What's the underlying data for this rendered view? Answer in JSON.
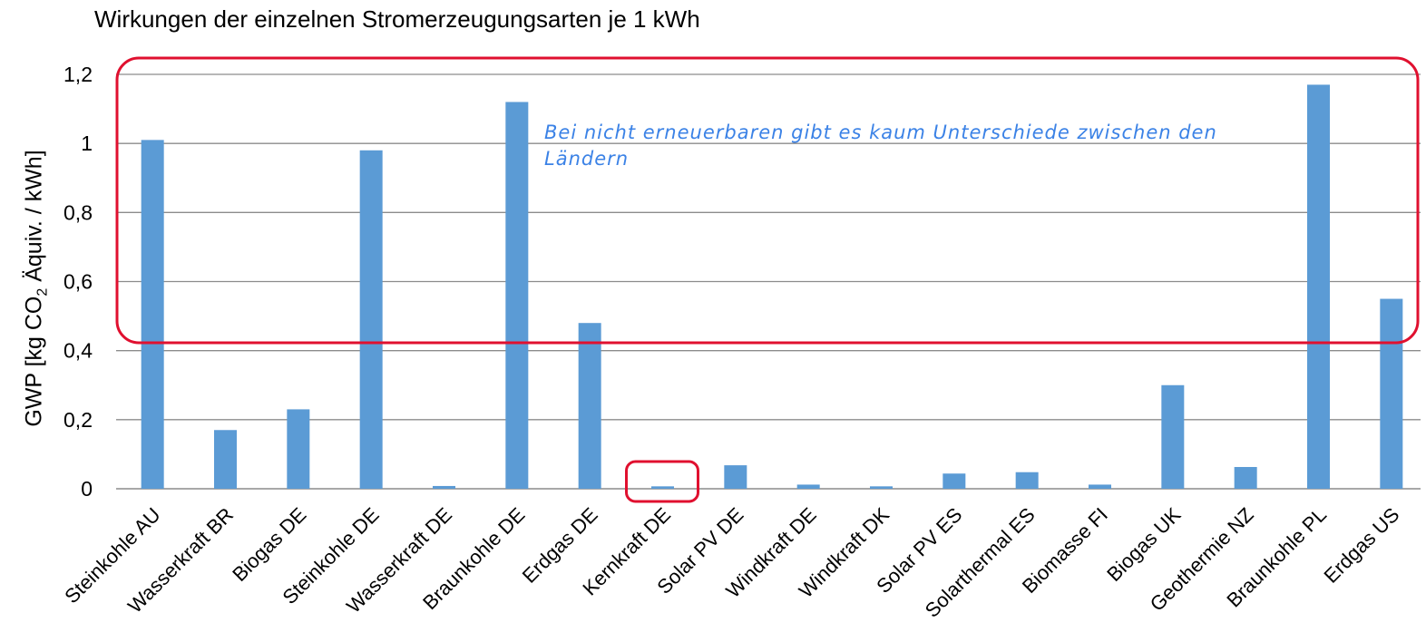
{
  "chart_data": {
    "type": "bar",
    "title": "Wirkungen der einzelnen Stromerzeugungsarten je 1 kWh",
    "ylabel_parts": {
      "before": "GWP [kg CO",
      "sub": "2",
      "after": " Äquiv. / kWh]"
    },
    "xlabel": "",
    "ylim": [
      0,
      1.2
    ],
    "yticks": [
      0,
      0.2,
      0.4,
      0.6,
      0.8,
      1,
      1.2
    ],
    "ytick_labels": [
      "0",
      "0,2",
      "0,4",
      "0,6",
      "0,8",
      "1",
      "1,2"
    ],
    "grid": true,
    "categories": [
      "Steinkohle AU",
      "Wasserkraft BR",
      "Biogas DE",
      "Steinkohle DE",
      "Wasserkraft DE",
      "Braunkohle DE",
      "Erdgas DE",
      "Kernkraft DE",
      "Solar PV DE",
      "Windkraft DE",
      "Windkraft DK",
      "Solar PV ES",
      "Solarthermal ES",
      "Biomasse FI",
      "Biogas UK",
      "Geothermie NZ",
      "Braunkohle PL",
      "Erdgas US"
    ],
    "values": [
      1.01,
      0.17,
      0.23,
      0.98,
      0.008,
      1.12,
      0.48,
      0.007,
      0.068,
      0.012,
      0.007,
      0.044,
      0.048,
      0.012,
      0.3,
      0.063,
      1.17,
      0.55
    ],
    "bar_color": "#5b9bd5",
    "annotation_color": "#e0102f",
    "annotation_text_color": "#3b82e6",
    "annotations": [
      {
        "text_lines": [
          "Bei nicht erneuerbaren gibt es kaum Unterschiede zwischen den",
          "Ländern"
        ]
      }
    ]
  }
}
